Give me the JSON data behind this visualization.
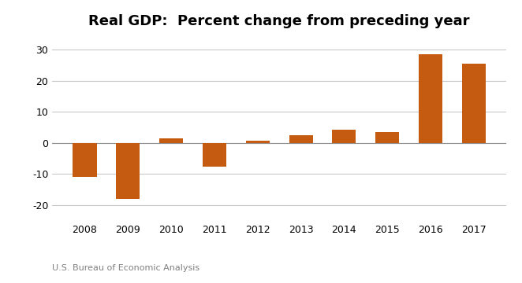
{
  "title": "Real GDP:  Percent change from preceding year",
  "years": [
    "2008",
    "2009",
    "2010",
    "2011",
    "2012",
    "2013",
    "2014",
    "2015",
    "2016",
    "2017"
  ],
  "values": [
    -11.0,
    -18.0,
    1.5,
    -7.5,
    0.7,
    2.5,
    4.2,
    3.5,
    28.5,
    25.5
  ],
  "bar_color": "#C55A11",
  "ylim": [
    -25,
    35
  ],
  "yticks": [
    -20,
    -10,
    0,
    10,
    20,
    30
  ],
  "grid_color": "#C8C8C8",
  "background_color": "#FFFFFF",
  "footnote": "U.S. Bureau of Economic Analysis",
  "title_fontsize": 13,
  "tick_fontsize": 9,
  "footnote_fontsize": 8,
  "title_fontfamily": "sans-serif"
}
